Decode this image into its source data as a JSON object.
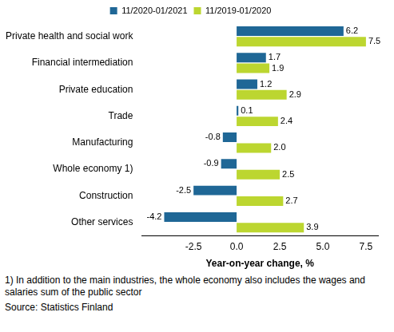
{
  "chart_data": {
    "type": "bar",
    "orientation": "horizontal",
    "categories": [
      "Private health and social work",
      "Financial intermediation",
      "Private education",
      "Trade",
      "Manufacturing",
      "Whole economy 1)",
      "Construction",
      "Other services"
    ],
    "series": [
      {
        "name": "11/2020-01/2021",
        "color": "#1f6796",
        "values": [
          6.2,
          1.7,
          1.2,
          0.1,
          -0.8,
          -0.9,
          -2.5,
          -4.2
        ],
        "value_labels": [
          "6.2",
          "1.7",
          "1.2",
          "0.1",
          "-0.8",
          "-0.9",
          "-2.5",
          "-4.2"
        ]
      },
      {
        "name": "11/2019-01/2020",
        "color": "#bcd630",
        "values": [
          7.5,
          1.9,
          2.9,
          2.4,
          2.0,
          2.5,
          2.7,
          3.9
        ],
        "value_labels": [
          "7.5",
          "1.9",
          "2.9",
          "2.4",
          "2.0",
          "2.5",
          "2.7",
          "3.9"
        ]
      }
    ],
    "x_label": "Year-on-year change, %",
    "xlim": [
      -5.5,
      8.2
    ],
    "xticks": [
      -2.5,
      {
        "value": 0,
        "label": "0.0"
      },
      2.5,
      {
        "value": 5,
        "label": "5.0"
      },
      7.5
    ],
    "grid": false,
    "legend": "top",
    "data_labels": true,
    "footnote": "1) In addition to the main industries, the whole economy also includes the wages and salaries sum of the public sector",
    "source": "Source: Statistics Finland"
  }
}
